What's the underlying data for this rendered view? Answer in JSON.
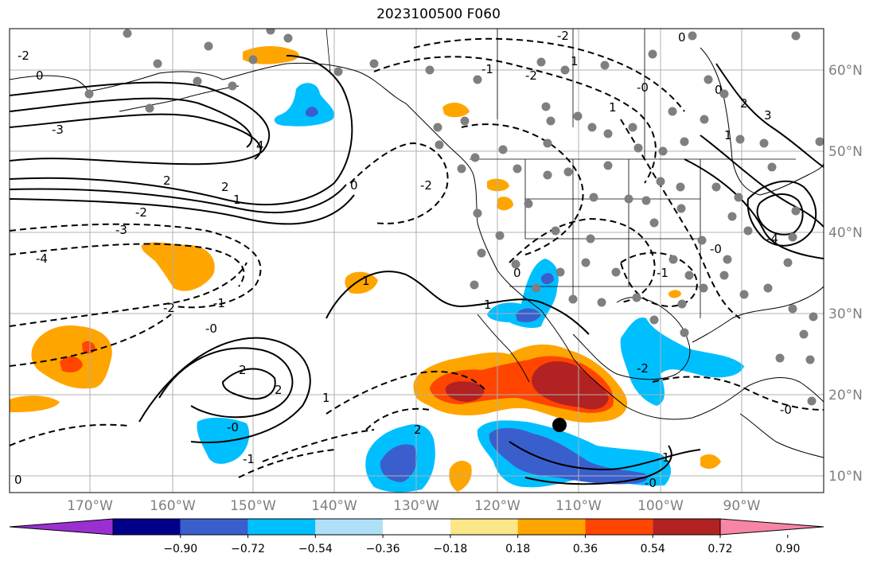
{
  "title": "2023100500 F060",
  "lon_labels": [
    "170°W",
    "160°W",
    "150°W",
    "140°W",
    "130°W",
    "120°W",
    "110°W",
    "100°W",
    "90°W"
  ],
  "lat_labels": [
    "60°N",
    "50°N",
    "40°N",
    "30°N",
    "20°N",
    "10°N"
  ],
  "colorbar": {
    "tick_labels": [
      "−0.90",
      "−0.72",
      "−0.54",
      "−0.36",
      "−0.18",
      "0.18",
      "0.36",
      "0.54",
      "0.72",
      "0.90"
    ],
    "colors": [
      "#9b30d0",
      "#00008b",
      "#3a5fcd",
      "#00bfff",
      "#b0dff8",
      "#ffffff",
      "#fbe68a",
      "#ffa500",
      "#ff4500",
      "#b22222",
      "#f785a6"
    ]
  },
  "contour_labels": {
    "c1": "-2",
    "c2": "0",
    "c3": "-3",
    "c4": "4",
    "c5": "2",
    "c6": "2",
    "c7": "1",
    "c8": "-2",
    "c9": "-3",
    "c10": "-4",
    "c11": "-2",
    "c12": "-1",
    "c13": "-0",
    "c14": "1",
    "c15": "2",
    "c16": "2",
    "c17": "-0",
    "c18": "1",
    "c19": "-1",
    "c20": "0",
    "c21": "1",
    "c22": "-2",
    "c23": "-0",
    "c24": "1",
    "c25": "-0",
    "c26": "0",
    "c27": "-1",
    "c28": "2",
    "c29": "-2",
    "c30": "0",
    "c31": "1",
    "c32": "-2",
    "c33": "1",
    "c34": "2",
    "c35": "3",
    "c36": "-4",
    "c37": "-0",
    "c38": "0",
    "c39": "-2",
    "c40": "-0",
    "c41": "-1",
    "c42": "1",
    "c43": "0"
  },
  "station_marker": "station-dots"
}
